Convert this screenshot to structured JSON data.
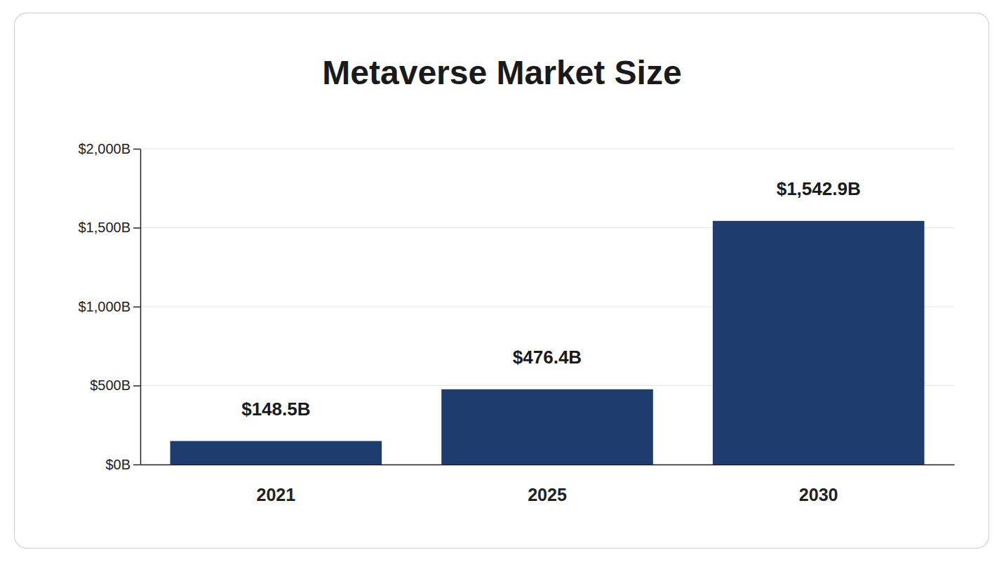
{
  "chart_data": {
    "type": "bar",
    "title": "Metaverse Market Size",
    "categories": [
      "2021",
      "2025",
      "2030"
    ],
    "values": [
      148.5,
      476.4,
      1542.9
    ],
    "value_labels": [
      "$148.5B",
      "$476.4B",
      "$1,542.9B"
    ],
    "color": "#1f3c6e",
    "ylim": [
      0,
      2000
    ],
    "yticks": [
      {
        "value": 0,
        "label": "$0B"
      },
      {
        "value": 500,
        "label": "$500B"
      },
      {
        "value": 1000,
        "label": "$1,000B"
      },
      {
        "value": 1500,
        "label": "$1,500B"
      },
      {
        "value": 2000,
        "label": "$2,000B"
      }
    ],
    "grid": true,
    "data_labels": true
  }
}
